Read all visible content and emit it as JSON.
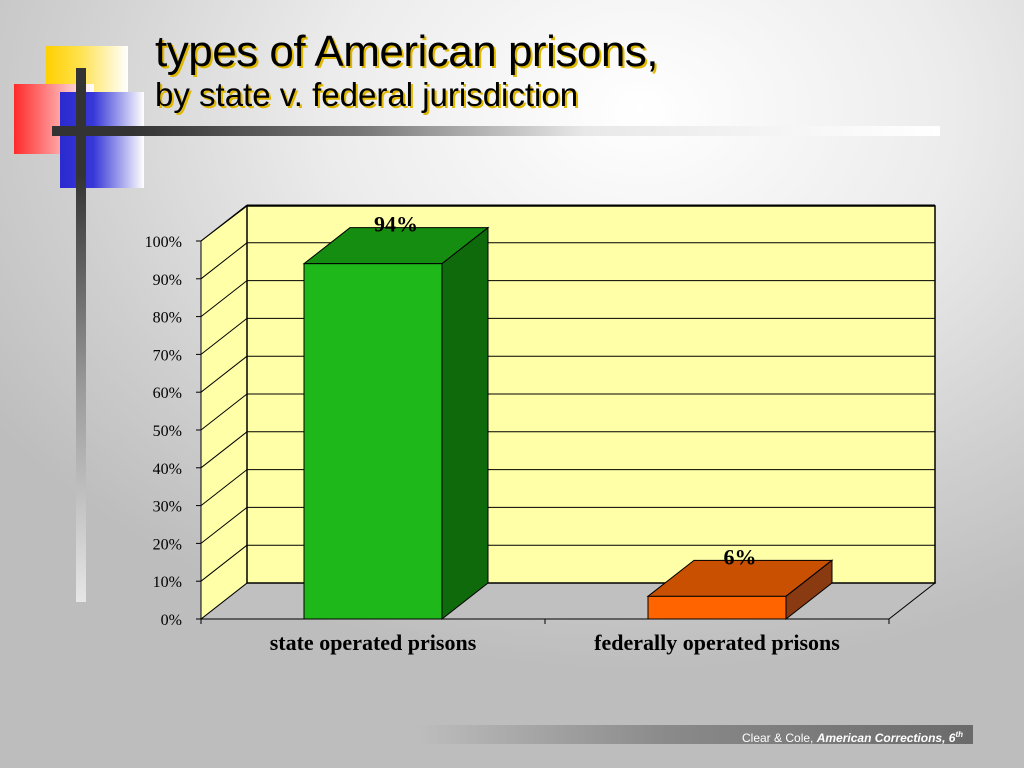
{
  "slide": {
    "title_line1": "types of American prisons,",
    "title_line2": "by state v. federal jurisdiction"
  },
  "footer": {
    "authors": "Clear & Cole,",
    "book": "American Corrections, 6",
    "edition_suffix": "th"
  },
  "colors": {
    "plot_background": "#ffffa8",
    "state_bar": "#1fb81a",
    "federal_bar": "#ff6400",
    "title_shadow": "#e0b800"
  },
  "chart_data": {
    "type": "bar",
    "categories": [
      "state operated prisons",
      "federally operated prisons"
    ],
    "values": [
      94,
      6
    ],
    "data_labels": [
      "94%",
      "6%"
    ],
    "y_ticks": [
      "0%",
      "10%",
      "20%",
      "30%",
      "40%",
      "50%",
      "60%",
      "70%",
      "80%",
      "90%",
      "100%"
    ],
    "ylim": [
      0,
      100
    ],
    "title": "",
    "xlabel": "",
    "ylabel": "",
    "grid": true,
    "legend": "none",
    "style": "3d"
  }
}
